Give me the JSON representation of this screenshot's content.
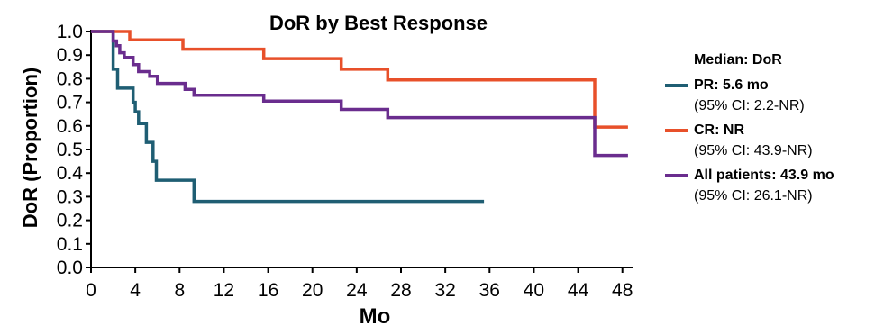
{
  "chart_data": {
    "type": "line",
    "title": "DoR by Best Response",
    "xlabel": "Mo",
    "ylabel": "DoR (Proportion)",
    "xlim": [
      0,
      49
    ],
    "ylim": [
      0,
      1.0
    ],
    "xticks": [
      0,
      4,
      8,
      12,
      16,
      20,
      24,
      28,
      32,
      36,
      40,
      44,
      48
    ],
    "yticks": [
      "0.0",
      "0.1",
      "0.2",
      "0.3",
      "0.4",
      "0.5",
      "0.6",
      "0.7",
      "0.8",
      "0.9",
      "1.0"
    ],
    "legend_header": "Median: DoR",
    "series": [
      {
        "name": "PR: 5.6 mo",
        "ci": "(95% CI: 2.2-NR)",
        "color": "#1f5e73",
        "x": [
          0,
          1.8,
          2.0,
          2.4,
          3.8,
          3.8,
          4.0,
          4.3,
          5.0,
          5.6,
          5.9,
          7.0,
          9.3,
          35.5
        ],
        "y": [
          1.0,
          1.0,
          0.84,
          0.76,
          0.76,
          0.7,
          0.66,
          0.61,
          0.53,
          0.45,
          0.37,
          0.37,
          0.28,
          0.28
        ]
      },
      {
        "name": "CR: NR",
        "ci": "(95% CI: 43.9-NR)",
        "color": "#e8502a",
        "x": [
          0,
          2.8,
          3.5,
          8.3,
          15.6,
          22.6,
          26.8,
          45.5,
          48.5
        ],
        "y": [
          1.0,
          1.0,
          0.965,
          0.925,
          0.885,
          0.84,
          0.795,
          0.595,
          0.595
        ]
      },
      {
        "name": "All patients: 43.9 mo",
        "ci": "(95% CI: 26.1-NR)",
        "color": "#6a2d8e",
        "x": [
          0,
          1.8,
          2.0,
          2.3,
          2.6,
          3.0,
          3.8,
          4.3,
          5.3,
          6.0,
          8.5,
          9.3,
          15.6,
          22.6,
          26.8,
          45.5,
          48.5
        ],
        "y": [
          1.0,
          1.0,
          0.96,
          0.94,
          0.91,
          0.89,
          0.86,
          0.83,
          0.81,
          0.78,
          0.755,
          0.73,
          0.705,
          0.67,
          0.635,
          0.475,
          0.475
        ]
      }
    ]
  }
}
